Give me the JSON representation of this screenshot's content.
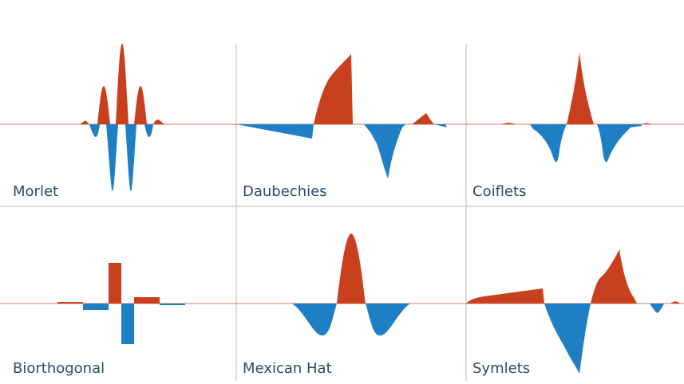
{
  "colors": {
    "positive": "#c9401e",
    "negative": "#1f7fc4",
    "baseline": "#e07a66",
    "grid": "#bfbfbf",
    "label": "#2a4a6e"
  },
  "panels": [
    {
      "name": "morlet",
      "label": "Morlet"
    },
    {
      "name": "daubechies",
      "label": "Daubechies"
    },
    {
      "name": "coiflets",
      "label": "Coiflets"
    },
    {
      "name": "biorthogonal",
      "label": "Biorthogonal"
    },
    {
      "name": "mexican-hat",
      "label": "Mexican Hat"
    },
    {
      "name": "symlets",
      "label": "Symlets"
    }
  ]
}
